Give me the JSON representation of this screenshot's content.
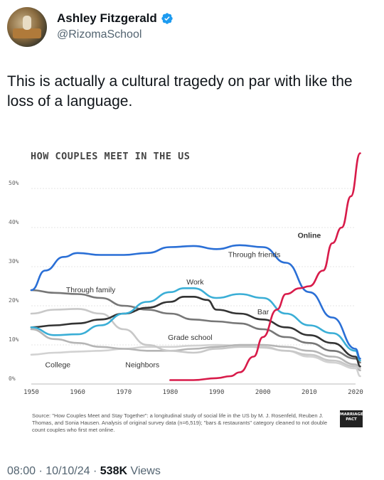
{
  "author": {
    "display_name": "Ashley Fitzgerald",
    "handle": "@RizomaSchool"
  },
  "tweet": {
    "text": "This is actually a cultural tragedy on par with like the loss of a language."
  },
  "chart_data": {
    "type": "line",
    "title": "HOW COUPLES MEET IN THE US",
    "x_ticks": [
      "1950",
      "1960",
      "1970",
      "1980",
      "1990",
      "2000",
      "2010",
      "2020"
    ],
    "y_ticks": [
      "0%",
      "10%",
      "20%",
      "30%",
      "40%",
      "50%"
    ],
    "xlim": [
      1950,
      2020
    ],
    "ylim": [
      0,
      50
    ],
    "grid": true,
    "series": [
      {
        "name": "Online",
        "color": "#d81b4a",
        "x": [
          1980,
          1985,
          1990,
          1993,
          1995,
          1998,
          2000,
          2003,
          2005,
          2008,
          2010,
          2013,
          2015,
          2017,
          2019,
          2021
        ],
        "y": [
          1,
          1,
          1.5,
          2,
          3,
          7,
          12,
          19,
          23,
          24.5,
          25,
          29,
          36,
          40,
          48,
          59
        ]
      },
      {
        "name": "Through friends",
        "color": "#2a6fd6",
        "x": [
          1950,
          1953,
          1957,
          1960,
          1965,
          1970,
          1975,
          1980,
          1985,
          1990,
          1995,
          2000,
          2005,
          2010,
          2015,
          2020,
          2021
        ],
        "y": [
          24,
          29,
          32.5,
          33.5,
          33,
          33,
          33.5,
          35,
          35.3,
          34.5,
          35.5,
          35,
          31,
          23.5,
          17,
          9,
          6.5
        ]
      },
      {
        "name": "Work",
        "color": "#3aaed6",
        "x": [
          1950,
          1955,
          1960,
          1965,
          1970,
          1975,
          1980,
          1983,
          1985,
          1990,
          1995,
          2000,
          2005,
          2010,
          2015,
          2020,
          2021
        ],
        "y": [
          14.5,
          12.5,
          12.7,
          15,
          18,
          21,
          23.5,
          24.5,
          24.5,
          22,
          23,
          22,
          18,
          15,
          13,
          8.5,
          6
        ]
      },
      {
        "name": "Bar",
        "color": "#333333",
        "x": [
          1950,
          1955,
          1960,
          1965,
          1970,
          1975,
          1980,
          1983,
          1985,
          1988,
          1990,
          1995,
          2000,
          2005,
          2010,
          2015,
          2020,
          2021
        ],
        "y": [
          14.5,
          15,
          15.5,
          16.5,
          18,
          19.5,
          21,
          22.3,
          22.3,
          21.5,
          19,
          18,
          16.5,
          14.5,
          12.5,
          10.5,
          7,
          4.5
        ]
      },
      {
        "name": "Through family",
        "color": "#777777",
        "x": [
          1950,
          1955,
          1960,
          1965,
          1970,
          1975,
          1980,
          1985,
          1990,
          1995,
          2000,
          2005,
          2010,
          2015,
          2020,
          2021
        ],
        "y": [
          24,
          23.3,
          23,
          22,
          20,
          19,
          18,
          16.5,
          16,
          15.5,
          14,
          12,
          10.5,
          8.5,
          6.5,
          5.5
        ]
      },
      {
        "name": "Grade school",
        "color": "#c8c8c8",
        "x": [
          1950,
          1955,
          1960,
          1965,
          1970,
          1975,
          1980,
          1985,
          1990,
          1995,
          2000,
          2005,
          2010,
          2015,
          2020,
          2021
        ],
        "y": [
          18,
          19,
          19.2,
          18,
          14,
          10,
          8.5,
          8,
          9,
          9.5,
          9.5,
          8.5,
          7.5,
          6,
          4.5,
          4
        ]
      },
      {
        "name": "College",
        "color": "#b5b5b5",
        "x": [
          1950,
          1955,
          1960,
          1965,
          1970,
          1975,
          1980,
          1985,
          1990,
          1995,
          2000,
          2005,
          2010,
          2015,
          2020,
          2021
        ],
        "y": [
          14,
          11.5,
          10.5,
          9.5,
          9,
          8.5,
          8.5,
          9,
          9.5,
          10,
          10,
          9.5,
          8.5,
          7,
          5,
          3.5
        ]
      },
      {
        "name": "Neighbors",
        "color": "#d2d2d2",
        "x": [
          1950,
          1955,
          1960,
          1965,
          1970,
          1975,
          1980,
          1985,
          1990,
          1995,
          2000,
          2005,
          2010,
          2015,
          2020,
          2021
        ],
        "y": [
          7.5,
          8,
          8.3,
          8.5,
          9,
          9.5,
          9.5,
          9.8,
          10,
          9.8,
          9.3,
          8.5,
          7,
          5.5,
          4,
          2
        ]
      }
    ],
    "labels": [
      {
        "text": "Online",
        "x": 2007.5,
        "y": 37.4,
        "bold": true
      },
      {
        "text": "Through friends",
        "x": 1992.5,
        "y": 32.5,
        "bold": false
      },
      {
        "text": "Work",
        "x": 1983.5,
        "y": 25.5,
        "bold": false
      },
      {
        "text": "Bar",
        "x": 1998.8,
        "y": 17.8,
        "bold": false
      },
      {
        "text": "Through family",
        "x": 1957.5,
        "y": 23.5,
        "bold": false
      },
      {
        "text": "Grade school",
        "x": 1979.5,
        "y": 11.3,
        "bold": false
      },
      {
        "text": "College",
        "x": 1953,
        "y": 4.3,
        "bold": false
      },
      {
        "text": "Neighbors",
        "x": 1970.3,
        "y": 4.3,
        "bold": false
      }
    ]
  },
  "source": {
    "text": "Source: \"How Couples Meet and Stay Together\": a longitudinal study of social life in the US by M. J. Rosenfeld, Reuben J. Thomas, and Sonia Hausen. Analysis of original survey data (n=6,519); \"bars & restaurants\" category cleaned to not double count couples who first met online."
  },
  "brand": {
    "line1": "MARRIAGE",
    "line2": "PACT"
  },
  "meta": {
    "time": "08:00",
    "separator": " · ",
    "date": "10/10/24",
    "views_count": "538K",
    "views_label": " Views"
  }
}
